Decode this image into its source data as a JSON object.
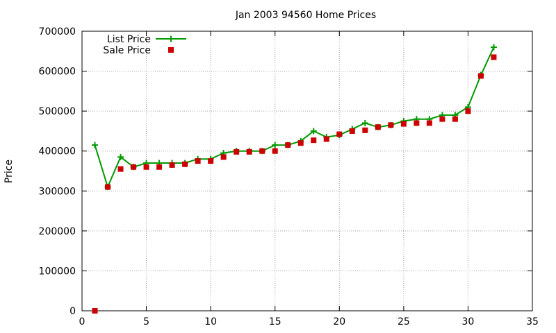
{
  "chart_data": {
    "type": "line",
    "title": "Jan 2003 94560 Home Prices",
    "xlabel": "",
    "ylabel": "Price",
    "xlim": [
      0,
      35
    ],
    "ylim": [
      0,
      700000
    ],
    "x_ticks": [
      "0",
      "5",
      "10",
      "15",
      "20",
      "25",
      "30",
      "35"
    ],
    "y_ticks": [
      "0",
      "100000",
      "200000",
      "300000",
      "400000",
      "500000",
      "600000",
      "700000"
    ],
    "grid": true,
    "legend_position": "top-left",
    "x": [
      1,
      2,
      3,
      4,
      5,
      6,
      7,
      8,
      9,
      10,
      11,
      12,
      13,
      14,
      15,
      16,
      17,
      18,
      19,
      20,
      21,
      22,
      23,
      24,
      25,
      26,
      27,
      28,
      29,
      30,
      31,
      32
    ],
    "series": [
      {
        "name": "List Price",
        "style": "line-points",
        "color": "#009900",
        "marker": "plus",
        "values": [
          415000,
          310000,
          385000,
          360000,
          370000,
          370000,
          370000,
          370000,
          380000,
          380000,
          395000,
          400000,
          400000,
          400000,
          415000,
          415000,
          425000,
          450000,
          435000,
          440000,
          455000,
          470000,
          460000,
          465000,
          475000,
          480000,
          480000,
          490000,
          490000,
          510000,
          590000,
          660000
        ]
      },
      {
        "name": "Sale Price",
        "style": "points",
        "color": "#cc0000",
        "marker": "square",
        "values": [
          0,
          310000,
          355000,
          360000,
          360000,
          360000,
          365000,
          367000,
          375000,
          375000,
          385000,
          398000,
          398000,
          400000,
          400000,
          415000,
          420000,
          427000,
          430000,
          442000,
          450000,
          452000,
          460000,
          465000,
          468000,
          470000,
          470000,
          480000,
          480000,
          500000,
          588000,
          635000
        ]
      }
    ]
  }
}
